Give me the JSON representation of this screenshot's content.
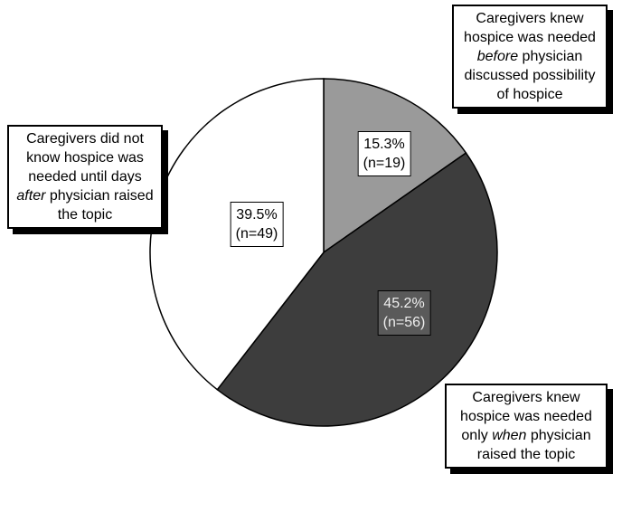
{
  "chart_data": {
    "type": "pie",
    "label_parts": [
      [
        "Caregivers knew hospice was needed ",
        "before",
        " physician discussed possibility of hospice"
      ],
      [
        "Caregivers knew hospice was needed only ",
        "when",
        " physician raised the topic"
      ],
      [
        "Caregivers did not know hospice was needed until days ",
        "after",
        " physician raised the topic"
      ]
    ],
    "values": [
      15.3,
      45.2,
      39.5
    ],
    "value_labels": [
      "15.3%",
      "45.2%",
      "39.5%"
    ],
    "count_labels": [
      "(n=19)",
      "(n=56)",
      "(n=49)"
    ],
    "colors": [
      "#9a9a9a",
      "#3d3d3d",
      "#ffffff"
    ]
  }
}
